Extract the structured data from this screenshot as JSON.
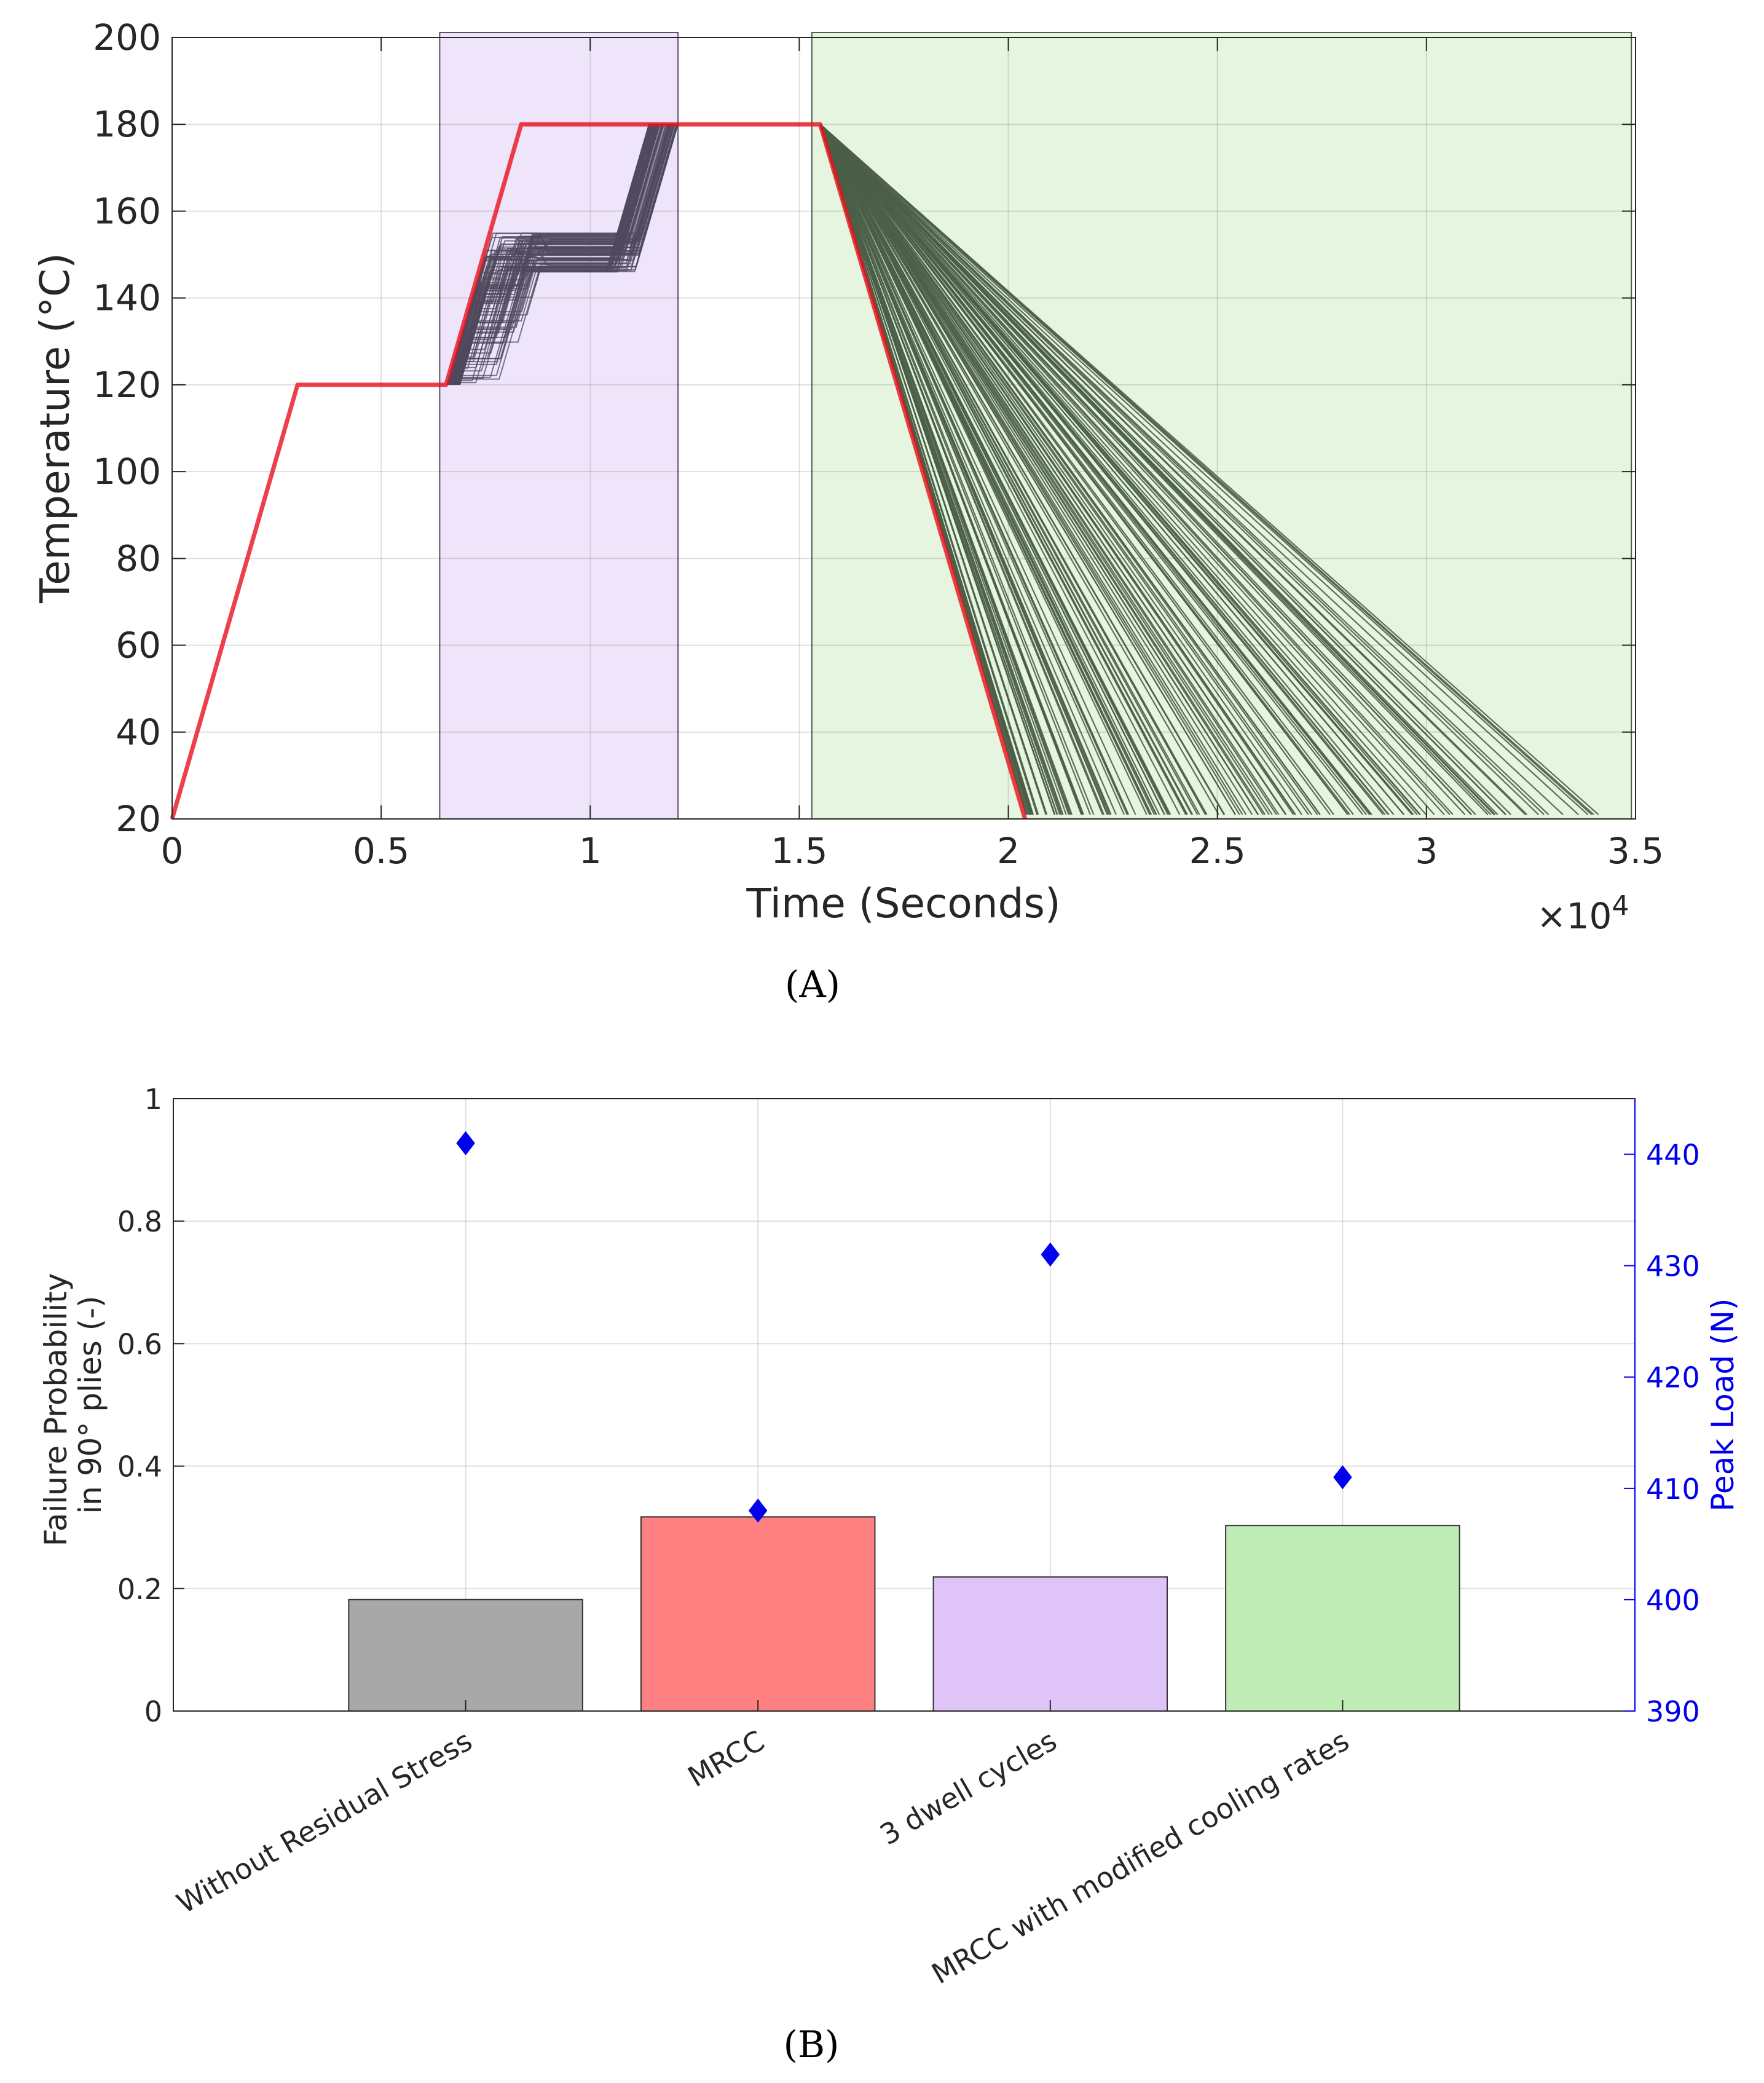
{
  "chart_data": [
    {
      "type": "line",
      "panel_label": "(A)",
      "xlabel": "Time (Seconds)",
      "ylabel": "Temperature (°C)",
      "x_multiplier_label": "×10",
      "x_multiplier_exponent": "4",
      "xlim": [
        0,
        3.5
      ],
      "ylim": [
        20,
        200
      ],
      "x_ticks": [
        0,
        0.5,
        1,
        1.5,
        2,
        2.5,
        3,
        3.5
      ],
      "x_tick_labels": [
        "0",
        "0.5",
        "1",
        "1.5",
        "2",
        "2.5",
        "3",
        "3.5"
      ],
      "y_ticks": [
        20,
        40,
        60,
        80,
        100,
        120,
        140,
        160,
        180,
        200
      ],
      "y_tick_labels": [
        "20",
        "40",
        "60",
        "80",
        "100",
        "120",
        "140",
        "160",
        "180",
        "200"
      ],
      "grid": true,
      "shaded_regions": [
        {
          "name": "dwell-variation-region",
          "x_start": 0.64,
          "x_end": 1.21,
          "color": "#efe5fb",
          "edge": "#5b4f66"
        },
        {
          "name": "cooling-variation-region",
          "x_start": 1.53,
          "x_end": 3.49,
          "color": "#e5f5e0",
          "edge": "#4f6050"
        }
      ],
      "series": [
        {
          "name": "MRCC baseline cure cycle",
          "color": "#e8101c",
          "x": [
            0,
            0.3,
            0.655,
            0.76,
            0.835,
            1.55,
            2.04
          ],
          "y": [
            20,
            120,
            120,
            155,
            180,
            180,
            20
          ]
        },
        {
          "name": "dwell cycle variations",
          "color": "#4f4a5e",
          "count": 90,
          "start_x_range": [
            0.655,
            0.69
          ],
          "first_dwell_y_range": [
            120,
            155
          ],
          "second_dwell_y_range": [
            146,
            155
          ],
          "end_x_range": [
            1.14,
            1.21
          ],
          "final_y": 180
        },
        {
          "name": "cooling rate variations",
          "color": "#4b5e47",
          "count": 160,
          "start_x": 1.55,
          "start_y": 180,
          "end_x_range": [
            2.04,
            3.46
          ],
          "end_y": 21
        }
      ]
    },
    {
      "type": "bar",
      "panel_label": "(B)",
      "categories": [
        "Without Residual Stress",
        "MRCC",
        "3 dwell cycles",
        "MRCC with modified cooling rates"
      ],
      "values": [
        0.182,
        0.317,
        0.219,
        0.303
      ],
      "bar_colors": [
        "#a8a8a8",
        "#ff8080",
        "#dfc5f7",
        "#c0ecb5"
      ],
      "ylabel_left": [
        "Failure Probability",
        "in 90° plies (-)"
      ],
      "ylim_left": [
        0,
        1
      ],
      "y_ticks_left": [
        0,
        0.2,
        0.4,
        0.6,
        0.8,
        1
      ],
      "y_tick_labels_left": [
        "0",
        "0.2",
        "0.4",
        "0.6",
        "0.8",
        "1"
      ],
      "secondary_series": {
        "name": "Peak Load (N)",
        "type": "scatter",
        "marker": "diamond",
        "color": "#0000ee",
        "values": [
          441,
          408,
          431,
          411
        ]
      },
      "ylabel_right": "Peak Load (N)",
      "ylim_right": [
        390,
        445
      ],
      "y_ticks_right": [
        390,
        400,
        410,
        420,
        430,
        440
      ],
      "y_tick_labels_right": [
        "390",
        "400",
        "410",
        "420",
        "430",
        "440"
      ],
      "grid": true
    }
  ]
}
